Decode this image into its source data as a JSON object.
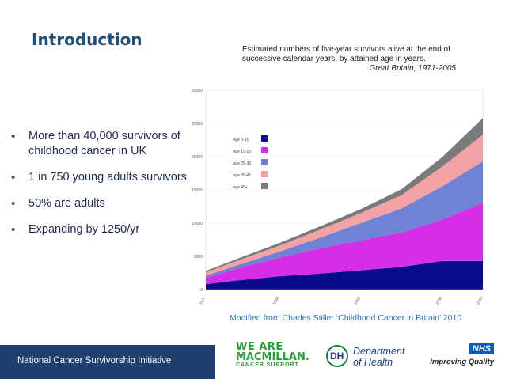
{
  "slide": {
    "title": "Introduction",
    "caption_line1": "Estimated numbers of five-year survivors alive at the end of successive calendar years, by attained age in years.",
    "caption_source": "Great Britain, 1971-2005",
    "bullets": [
      "More than 40,000 survivors of childhood cancer in UK",
      "1 in 750 young adults survivors",
      "50% are adults",
      "Expanding by 1250/yr"
    ],
    "bullet_glyph": "•",
    "modified_note": "Modified from Charles Stiller ‘Childhood Cancer in Britain’ 2010",
    "footer": "National Cancer Survivorship Initiative"
  },
  "logos": {
    "macmillan_line1": "WE ARE",
    "macmillan_line2": "MACMILLAN.",
    "macmillan_line3": "CANCER SUPPORT",
    "dh_mark": "DH",
    "dh_line1": "Department",
    "dh_line2": "of Health",
    "nhs_mark": "NHS",
    "nhs_tag": "Improving Quality"
  },
  "chart_data": {
    "type": "area",
    "stacked": true,
    "x": [
      1971,
      1975,
      1980,
      1985,
      1990,
      1995,
      2000,
      2005
    ],
    "x_tick_labels": [
      "1971",
      "1980",
      "1990",
      "2000",
      "2005"
    ],
    "x_tick_values": [
      1971,
      1980,
      1990,
      2000,
      2005
    ],
    "ylim": [
      0,
      30000
    ],
    "y_ticks": [
      0,
      5000,
      10000,
      15000,
      20000,
      25000,
      30000
    ],
    "y_tick_labels": [
      "0",
      "5000",
      "10000",
      "15000",
      "20000",
      "25000",
      "30000"
    ],
    "legend_position": "top-left",
    "series": [
      {
        "name": "Age 0-15",
        "color": "#0a0a8c",
        "values": [
          800,
          1400,
          2000,
          2400,
          2900,
          3400,
          4300,
          4300
        ]
      },
      {
        "name": "Age 15-25",
        "color": "#d42ee8",
        "values": [
          1000,
          1800,
          2800,
          3800,
          4500,
          5200,
          6200,
          8800
        ]
      },
      {
        "name": "Age 25-35",
        "color": "#6f82d6",
        "values": [
          300,
          500,
          900,
          1600,
          2600,
          3600,
          5000,
          6200
        ]
      },
      {
        "name": "Age 35-45",
        "color": "#f2a2a2",
        "values": [
          500,
          700,
          900,
          1200,
          1500,
          2000,
          3000,
          4000
        ]
      },
      {
        "name": "Age 45+",
        "color": "#7a7a7a",
        "values": [
          200,
          300,
          400,
          500,
          600,
          900,
          1400,
          2500
        ]
      }
    ]
  }
}
